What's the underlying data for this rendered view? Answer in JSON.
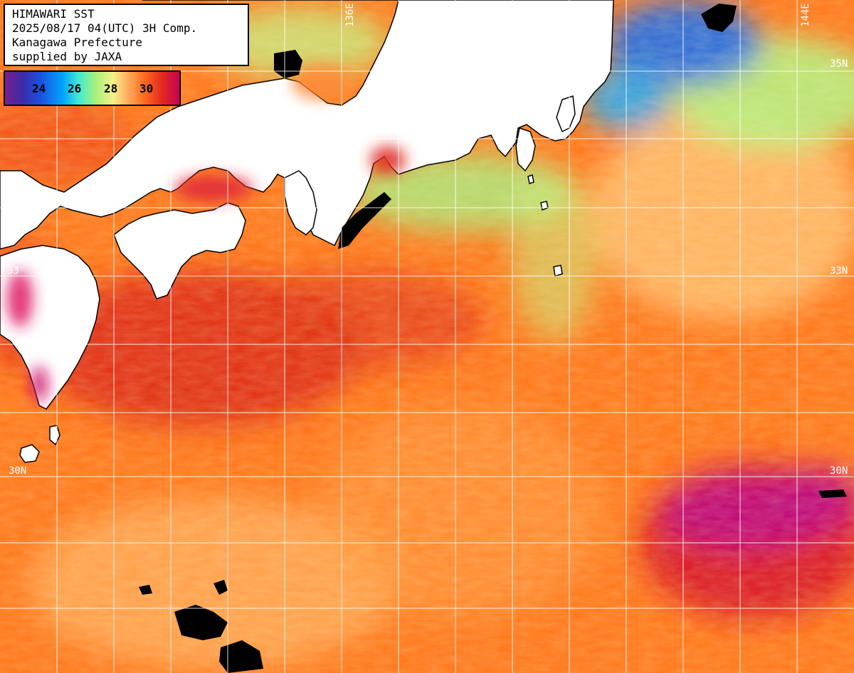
{
  "title": {
    "line1": "HIMAWARI SST",
    "line2": "2025/08/17 04(UTC) 3H Comp.",
    "line3": "Kanagawa Prefecture",
    "line4": "supplied by JAXA"
  },
  "legend": {
    "ticks": [
      "24",
      "26",
      "28",
      "30"
    ],
    "colors": [
      "#7a1f8f",
      "#1c4fdd",
      "#00a3ff",
      "#a6f27a",
      "#f6f08a",
      "#ff6a1f",
      "#e42a1f",
      "#c8005a"
    ]
  },
  "grid_labels": {
    "lat_35_right": "35N",
    "lat_33_right": "33N",
    "lat_33_left": "33",
    "lat_30_left": "30N",
    "lat_30_right": "30N",
    "lon_136": "136E",
    "lon_144": "144E"
  },
  "colors": {
    "land": "#ffffff",
    "ocean_warm": "#ff7a1e",
    "ocean_hot": "#e0261f",
    "ocean_very_hot": "#cc0e6e",
    "ocean_mild": "#ffc070",
    "ocean_cool": "#a8f080",
    "ocean_cold": "#1e8bf0",
    "cloud": "#000000",
    "grid": "#ffffff"
  }
}
